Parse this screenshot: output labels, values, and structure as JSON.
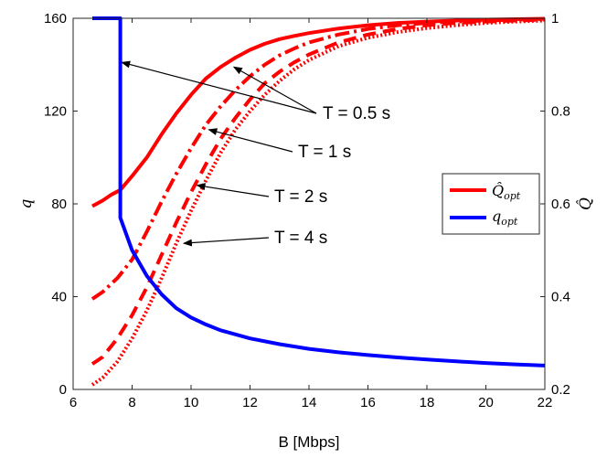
{
  "chart_data": {
    "type": "line",
    "title": "",
    "xlabel": "B [Mbps]",
    "ylabel_left": "q",
    "ylabel_right": "Q̂",
    "xlim": [
      6,
      22
    ],
    "ylim_left": [
      0,
      160
    ],
    "ylim_right": [
      0.2,
      1.0
    ],
    "xticks": [
      "6",
      "8",
      "10",
      "12",
      "14",
      "16",
      "18",
      "20",
      "22"
    ],
    "yticks_left": [
      "0",
      "40",
      "80",
      "120",
      "160"
    ],
    "yticks_right": [
      "0.2",
      "0.4",
      "0.6",
      "0.8",
      "1"
    ],
    "legend": {
      "position": "right",
      "entries": [
        {
          "label": "Q̂",
          "subscript": "opt",
          "color": "#ff0000"
        },
        {
          "label": "q",
          "subscript": "opt",
          "color": "#0000ff"
        }
      ]
    },
    "series": [
      {
        "name": "Q_opt, T = 0.5 s",
        "axis": "right",
        "color": "#ff0000",
        "style": "solid",
        "x": [
          6.65,
          7.0,
          7.3,
          7.6,
          8.0,
          8.5,
          9.0,
          9.5,
          10.0,
          10.5,
          11.0,
          11.5,
          12.0,
          12.5,
          13.0,
          13.5,
          14.0,
          14.5,
          15.0,
          16.0,
          17.0,
          18.0,
          19.0,
          20.0,
          21.0,
          22.0
        ],
        "y": [
          0.595,
          0.607,
          0.62,
          0.63,
          0.66,
          0.7,
          0.75,
          0.795,
          0.835,
          0.87,
          0.895,
          0.915,
          0.932,
          0.945,
          0.955,
          0.962,
          0.968,
          0.973,
          0.978,
          0.985,
          0.99,
          0.993,
          0.995,
          0.997,
          0.998,
          0.999
        ]
      },
      {
        "name": "Q_opt, T = 1 s",
        "axis": "right",
        "color": "#ff0000",
        "style": "dashdot",
        "x": [
          6.65,
          7.0,
          7.5,
          8.0,
          8.5,
          9.0,
          9.5,
          10.0,
          10.5,
          11.0,
          11.5,
          12.0,
          12.5,
          13.0,
          13.5,
          14.0,
          15.0,
          16.0,
          17.0,
          18.0,
          19.0,
          20.0,
          21.0,
          22.0
        ],
        "y": [
          0.395,
          0.41,
          0.44,
          0.48,
          0.54,
          0.605,
          0.665,
          0.72,
          0.77,
          0.81,
          0.845,
          0.875,
          0.9,
          0.92,
          0.935,
          0.948,
          0.965,
          0.977,
          0.985,
          0.99,
          0.993,
          0.995,
          0.997,
          0.998
        ]
      },
      {
        "name": "Q_opt, T = 2 s",
        "axis": "right",
        "color": "#ff0000",
        "style": "dashed",
        "x": [
          6.65,
          7.0,
          7.5,
          8.0,
          8.5,
          9.0,
          9.5,
          10.0,
          10.5,
          11.0,
          11.5,
          12.0,
          12.5,
          13.0,
          13.5,
          14.0,
          15.0,
          16.0,
          17.0,
          18.0,
          19.0,
          20.0,
          21.0,
          22.0
        ],
        "y": [
          0.255,
          0.27,
          0.31,
          0.36,
          0.42,
          0.49,
          0.56,
          0.625,
          0.685,
          0.74,
          0.785,
          0.825,
          0.86,
          0.885,
          0.905,
          0.922,
          0.948,
          0.965,
          0.977,
          0.985,
          0.99,
          0.993,
          0.995,
          0.997
        ]
      },
      {
        "name": "Q_opt, T = 4 s",
        "axis": "right",
        "color": "#ff0000",
        "style": "dotted",
        "x": [
          6.65,
          7.0,
          7.5,
          8.0,
          8.5,
          9.0,
          9.5,
          10.0,
          10.5,
          11.0,
          11.5,
          12.0,
          12.5,
          13.0,
          13.5,
          14.0,
          15.0,
          16.0,
          17.0,
          18.0,
          19.0,
          20.0,
          21.0,
          22.0
        ],
        "y": [
          0.21,
          0.225,
          0.26,
          0.31,
          0.37,
          0.44,
          0.515,
          0.585,
          0.65,
          0.71,
          0.76,
          0.8,
          0.835,
          0.865,
          0.89,
          0.91,
          0.94,
          0.958,
          0.97,
          0.979,
          0.985,
          0.99,
          0.993,
          0.995
        ]
      },
      {
        "name": "q_opt",
        "axis": "left",
        "color": "#0000ff",
        "style": "solid",
        "x": [
          6.65,
          7.0,
          7.3,
          7.6,
          7.6,
          8.0,
          8.5,
          9.0,
          9.5,
          10.0,
          10.5,
          11.0,
          12.0,
          13.0,
          14.0,
          15.0,
          16.0,
          17.0,
          18.0,
          19.0,
          20.0,
          21.0,
          22.0
        ],
        "y": [
          160,
          160,
          160,
          160,
          74,
          60,
          49,
          41,
          35,
          31,
          28,
          25.5,
          22,
          19.5,
          17.5,
          16,
          14.8,
          13.8,
          12.9,
          12.1,
          11.4,
          10.8,
          10.3
        ]
      }
    ],
    "annotations": [
      {
        "text": "T = 0.5 s",
        "arrows_to": [
          [
            7.65,
            141
          ],
          [
            11.45,
            139
          ]
        ],
        "from_axis": "left"
      },
      {
        "text": "T = 1 s",
        "arrows_to": [
          [
            10.6,
            112
          ]
        ],
        "from_axis": "left"
      },
      {
        "text": "T = 2 s",
        "arrows_to": [
          [
            10.2,
            88
          ]
        ],
        "from_axis": "left"
      },
      {
        "text": "T = 4 s",
        "arrows_to": [
          [
            9.75,
            63
          ]
        ],
        "from_axis": "left"
      }
    ]
  }
}
